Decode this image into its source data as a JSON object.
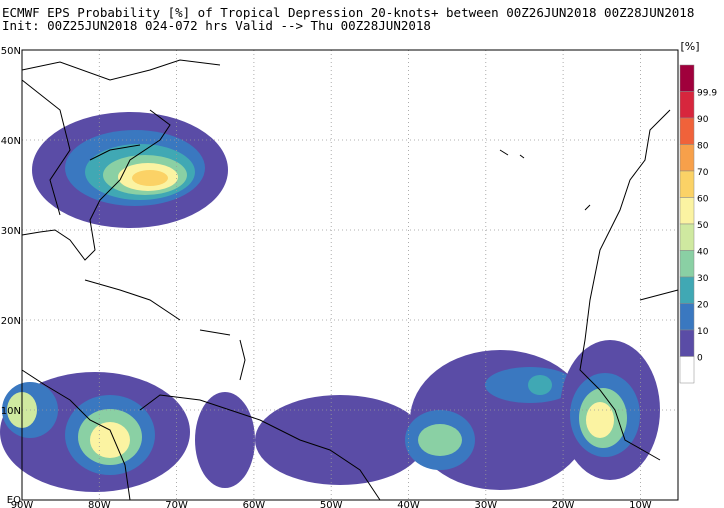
{
  "header": {
    "line1": "ECMWF EPS Probability [%] of Tropical Depression 20-knots+ between 00Z26JUN2018 00Z28JUN2018",
    "line2": "Init: 00Z25JUN2018 024-072 hrs Valid --> Thu 00Z28JUN2018"
  },
  "map": {
    "lat_labels": [
      "50N",
      "40N",
      "30N",
      "20N",
      "10N",
      "EQ"
    ],
    "lon_labels": [
      "90W",
      "80W",
      "70W",
      "60W",
      "50W",
      "40W",
      "30W",
      "20W",
      "10W"
    ]
  },
  "colorbar": {
    "unit": "[%]",
    "labels": [
      "99.9",
      "90",
      "80",
      "70",
      "60",
      "50",
      "40",
      "30",
      "20",
      "10",
      "0"
    ],
    "colors": [
      "#a0003c",
      "#d7263d",
      "#f0623a",
      "#f7a04a",
      "#fbd266",
      "#fbf3a2",
      "#cfe9a0",
      "#8ad0a4",
      "#40a8b4",
      "#3a78c0",
      "#5a4ca6",
      "#ffffff"
    ]
  }
}
